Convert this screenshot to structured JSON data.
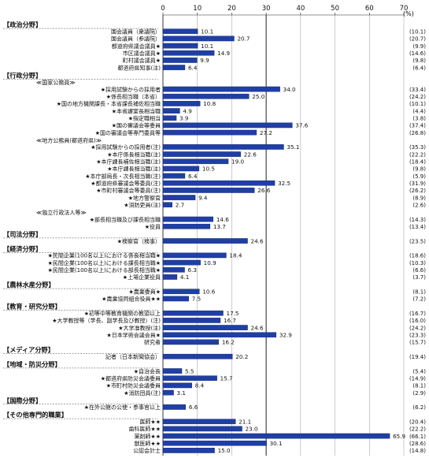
{
  "chart_data": {
    "type": "bar",
    "orientation": "horizontal",
    "unit": "(%)",
    "xlim": [
      0,
      70
    ],
    "x_ticks": [
      "0",
      "10",
      "20",
      "30",
      "40",
      "50",
      "60",
      "70"
    ],
    "reference_line": 30,
    "bar_color": "#1f3fa5",
    "rows": [
      {
        "kind": "section",
        "label": "【政治分野】"
      },
      {
        "kind": "bar",
        "label": "国会議員（衆議院）",
        "value": 10.1,
        "value_label": "10.1",
        "prev": "(10.1)"
      },
      {
        "kind": "bar",
        "label": "国会議員（参議院）",
        "value": 20.7,
        "value_label": "20.7",
        "prev": "(20.7)"
      },
      {
        "kind": "bar",
        "label": "都道府県議会議員★",
        "value": 10.1,
        "value_label": "10.1",
        "prev": "(9.9)"
      },
      {
        "kind": "bar",
        "label": "市区議会議員★",
        "value": 14.9,
        "value_label": "14.9",
        "prev": "(14.6)"
      },
      {
        "kind": "bar",
        "label": "町村議会議員★",
        "value": 9.9,
        "value_label": "9.9",
        "prev": "(9.8)"
      },
      {
        "kind": "bar",
        "label": "都道府県知事(注)",
        "value": 6.4,
        "value_label": "6.4",
        "prev": "(6.4)"
      },
      {
        "kind": "section",
        "label": "【行政分野】"
      },
      {
        "kind": "group",
        "label": "≪国家公務員≫"
      },
      {
        "kind": "bar",
        "label": "★採用試験からの採用者",
        "value": 34.0,
        "value_label": "34.0",
        "prev": "(33.4)"
      },
      {
        "kind": "bar",
        "label": "★係長相当職（本省）",
        "value": 25.0,
        "value_label": "25.0",
        "prev": "(24.2)"
      },
      {
        "kind": "bar",
        "label": "★国の地方機関課長・本省課長補佐相当職",
        "value": 10.8,
        "value_label": "10.8",
        "prev": "(10.1)"
      },
      {
        "kind": "bar",
        "label": "★本省課室長相当職",
        "value": 4.9,
        "value_label": "4.9",
        "prev": "(4.4)"
      },
      {
        "kind": "bar",
        "label": "★指定職相当",
        "value": 3.9,
        "value_label": "3.9",
        "prev": "(3.8)"
      },
      {
        "kind": "bar",
        "label": "★国の審議会等委員",
        "value": 37.6,
        "value_label": "37.6",
        "prev": "(37.4)"
      },
      {
        "kind": "bar",
        "label": "★国の審議会等専門委員等",
        "value": 27.2,
        "value_label": "27.2",
        "prev": "(26.8)"
      },
      {
        "kind": "group",
        "label": "≪地方公務員(都道府県)≫"
      },
      {
        "kind": "bar",
        "label": "★採用試験からの採用者(注)",
        "value": 35.1,
        "value_label": "35.1",
        "prev": "(35.3)"
      },
      {
        "kind": "bar",
        "label": "★本庁係長相当職(注)",
        "value": 22.6,
        "value_label": "22.6",
        "prev": "(22.2)"
      },
      {
        "kind": "bar",
        "label": "★本庁課長補佐相当職(注)",
        "value": 19.0,
        "value_label": "19.0",
        "prev": "(18.4)"
      },
      {
        "kind": "bar",
        "label": "★本庁課長相当職(注)",
        "value": 10.5,
        "value_label": "10.5",
        "prev": "(9.8)"
      },
      {
        "kind": "bar",
        "label": "★本庁部局長・次長相当職(注)",
        "value": 6.4,
        "value_label": "6.4",
        "prev": "(5.9)"
      },
      {
        "kind": "bar",
        "label": "★都道府県審議会等委員(注)",
        "value": 32.5,
        "value_label": "32.5",
        "prev": "(31.9)"
      },
      {
        "kind": "bar",
        "label": "★市町村審議会等委員(注)",
        "value": 26.6,
        "value_label": "26.6",
        "prev": "(26.2)"
      },
      {
        "kind": "bar",
        "label": "★地方警察官",
        "value": 9.4,
        "value_label": "9.4",
        "prev": "(8.9)"
      },
      {
        "kind": "bar",
        "label": "★消防吏員(注)",
        "value": 2.7,
        "value_label": "2.7",
        "prev": "(2.6)"
      },
      {
        "kind": "group",
        "label": "≪独立行政法人等≫"
      },
      {
        "kind": "bar",
        "label": "★部長相当職及び課長相当職",
        "value": 14.6,
        "value_label": "14.6",
        "prev": "(14.3)"
      },
      {
        "kind": "bar",
        "label": "★役員",
        "value": 13.7,
        "value_label": "13.7",
        "prev": "(13.4)"
      },
      {
        "kind": "section",
        "label": "【司法分野】"
      },
      {
        "kind": "bar",
        "label": "★検察官（検事）",
        "value": 24.6,
        "value_label": "24.6",
        "prev": "(23.5)"
      },
      {
        "kind": "section",
        "label": "【経済分野】"
      },
      {
        "kind": "bar",
        "label": "★民間企業(100名以上)における係長相当職★",
        "value": 18.4,
        "value_label": "18.4",
        "prev": "(18.6)"
      },
      {
        "kind": "bar",
        "label": "★民間企業(100名以上)における課長相当職★",
        "value": 10.9,
        "value_label": "10.9",
        "prev": "(10.3)"
      },
      {
        "kind": "bar",
        "label": "★民間企業(100名以上)における部長相当職★",
        "value": 6.3,
        "value_label": "6.3",
        "prev": "(6.6)"
      },
      {
        "kind": "bar",
        "label": "★上場企業役員",
        "value": 4.1,
        "value_label": "4.1",
        "prev": "(3.7)"
      },
      {
        "kind": "section",
        "label": "【農林水産分野】"
      },
      {
        "kind": "bar",
        "label": "★農業委員★",
        "value": 10.6,
        "value_label": "10.6",
        "prev": "(8.1)"
      },
      {
        "kind": "bar",
        "label": "★農業協同組合役員★★",
        "value": 7.5,
        "value_label": "7.5",
        "prev": "(7.2)"
      },
      {
        "kind": "section",
        "label": "【教育・研究分野】"
      },
      {
        "kind": "bar",
        "label": "★初等中等教育機関の教頭以上",
        "value": 17.5,
        "value_label": "17.5",
        "prev": "(16.7)"
      },
      {
        "kind": "bar",
        "label": "★大学教授等（学長、副学長及び教授）(注)",
        "value": 16.7,
        "value_label": "16.7",
        "prev": "(16.0)"
      },
      {
        "kind": "bar",
        "label": "★大学准教授(注)",
        "value": 24.6,
        "value_label": "24.6",
        "prev": "(24.2)"
      },
      {
        "kind": "bar",
        "label": "★日本学術会議会員★",
        "value": 32.9,
        "value_label": "32.9",
        "prev": "(23.3)"
      },
      {
        "kind": "bar",
        "label": "研究者",
        "value": 16.2,
        "value_label": "16.2",
        "prev": "(15.7)"
      },
      {
        "kind": "section",
        "label": "【メディア分野】"
      },
      {
        "kind": "bar",
        "label": "記者（日本新聞協会）",
        "value": 20.2,
        "value_label": "20.2",
        "prev": "(19.4)"
      },
      {
        "kind": "section",
        "label": "【地域・防災分野】"
      },
      {
        "kind": "bar",
        "label": "★自治会長",
        "value": 5.5,
        "value_label": "5.5",
        "prev": "(5.4)"
      },
      {
        "kind": "bar",
        "label": "★都道府県防災会議委員",
        "value": 15.7,
        "value_label": "15.7",
        "prev": "(14.9)"
      },
      {
        "kind": "bar",
        "label": "★市町村防災会議委員",
        "value": 8.4,
        "value_label": "8.4",
        "prev": "(8.1)"
      },
      {
        "kind": "bar",
        "label": "★消防団員(注)",
        "value": 3.1,
        "value_label": "3.1",
        "prev": "(2.9)"
      },
      {
        "kind": "section",
        "label": "【国際分野】"
      },
      {
        "kind": "bar",
        "label": "★在外公館の公使・参事官以上",
        "value": 6.6,
        "value_label": "6.6",
        "prev": "(6.2)"
      },
      {
        "kind": "section",
        "label": "【その他専門的職業】"
      },
      {
        "kind": "bar",
        "label": "医師★★",
        "value": 21.1,
        "value_label": "21.1",
        "prev": "(20.4)"
      },
      {
        "kind": "bar",
        "label": "歯科医師★★",
        "value": 23.0,
        "value_label": "23.0",
        "prev": "(22.2)"
      },
      {
        "kind": "bar",
        "label": "薬剤師★★",
        "value": 65.9,
        "value_label": "65.9",
        "prev": "(66.1)"
      },
      {
        "kind": "bar",
        "label": "獣医師★★",
        "value": 30.1,
        "value_label": "30.1",
        "prev": "(28.6)"
      },
      {
        "kind": "bar",
        "label": "公認会計士",
        "value": 15.0,
        "value_label": "15.0",
        "prev": "(14.8)"
      }
    ]
  }
}
